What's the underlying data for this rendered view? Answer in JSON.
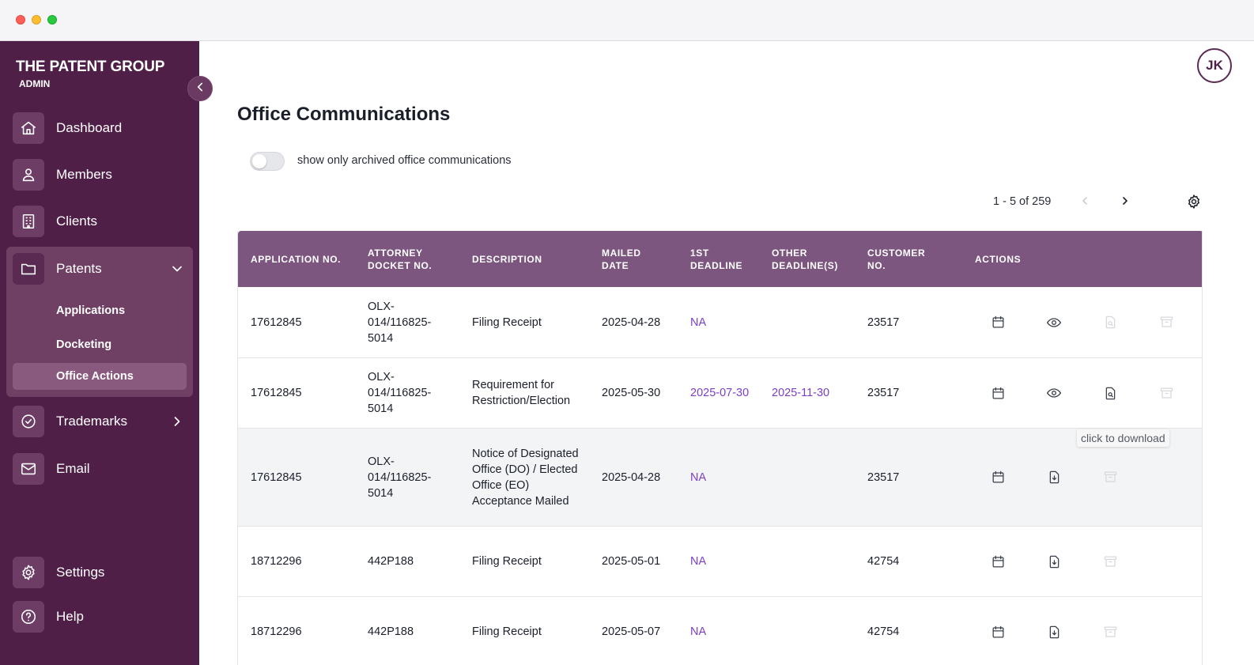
{
  "brand": {
    "title": "THE PATENT GROUP",
    "subtitle": "ADMIN"
  },
  "sidebar": {
    "items": [
      {
        "label": "Dashboard",
        "icon": "home-icon"
      },
      {
        "label": "Members",
        "icon": "users-icon"
      },
      {
        "label": "Clients",
        "icon": "building-icon"
      },
      {
        "label": "Patents",
        "icon": "folder-icon",
        "expanded": true
      },
      {
        "label": "Trademarks",
        "icon": "badge-check-icon"
      },
      {
        "label": "Email",
        "icon": "mail-icon"
      },
      {
        "label": "Settings",
        "icon": "gear-icon"
      },
      {
        "label": "Help",
        "icon": "help-circle-icon"
      }
    ],
    "patents_sub": [
      {
        "label": "Applications",
        "active": false
      },
      {
        "label": "Docketing",
        "active": false
      },
      {
        "label": "Office Actions",
        "active": true
      }
    ]
  },
  "user": {
    "initials": "JK"
  },
  "page": {
    "title": "Office Communications",
    "archived_toggle_label": "show only archived office communications",
    "archived_toggle_on": false,
    "pagination": "1 - 5 of 259"
  },
  "table": {
    "headers": [
      "APPLICATION NO.",
      "ATTORNEY DOCKET NO.",
      "DESCRIPTION",
      "MAILED DATE",
      "1ST DEADLINE",
      "OTHER DEADLINE(S)",
      "CUSTOMER NO.",
      "ACTIONS"
    ],
    "rows": [
      {
        "app_no": "17612845",
        "docket": "OLX-014/116825-5014",
        "description": "Filing Receipt",
        "mailed": "2025-04-28",
        "first_deadline": "NA",
        "other_deadlines": "",
        "customer": "23517",
        "actions": [
          "calendar-icon",
          "eye-icon",
          "file-search-icon",
          "archive-icon"
        ]
      },
      {
        "app_no": "17612845",
        "docket": "OLX-014/116825-5014",
        "description": "Requirement for Restriction/Election",
        "mailed": "2025-05-30",
        "first_deadline": "2025-07-30",
        "other_deadlines": "2025-11-30",
        "customer": "23517",
        "actions": [
          "calendar-icon",
          "eye-icon",
          "file-search-icon",
          "archive-icon"
        ]
      },
      {
        "app_no": "17612845",
        "docket": "OLX-014/116825-5014",
        "description": "Notice of Designated Office (DO) / Elected Office (EO) Acceptance Mailed",
        "mailed": "2025-04-28",
        "first_deadline": "NA",
        "other_deadlines": "",
        "customer": "23517",
        "actions": [
          "calendar-icon",
          "file-download-icon",
          "archive-icon"
        ]
      },
      {
        "app_no": "18712296",
        "docket": "442P188",
        "description": "Filing Receipt",
        "mailed": "2025-05-01",
        "first_deadline": "NA",
        "other_deadlines": "",
        "customer": "42754",
        "actions": [
          "calendar-icon",
          "file-download-icon",
          "archive-icon"
        ]
      },
      {
        "app_no": "18712296",
        "docket": "442P188",
        "description": "Filing Receipt",
        "mailed": "2025-05-07",
        "first_deadline": "NA",
        "other_deadlines": "",
        "customer": "42754",
        "actions": [
          "calendar-icon",
          "file-download-icon",
          "archive-icon"
        ]
      }
    ]
  },
  "tooltip": "click to download",
  "colors": {
    "sidebar": "#4f1f47",
    "table_header": "#7d5680",
    "link": "#7b3fc4",
    "accent": "#704064"
  }
}
